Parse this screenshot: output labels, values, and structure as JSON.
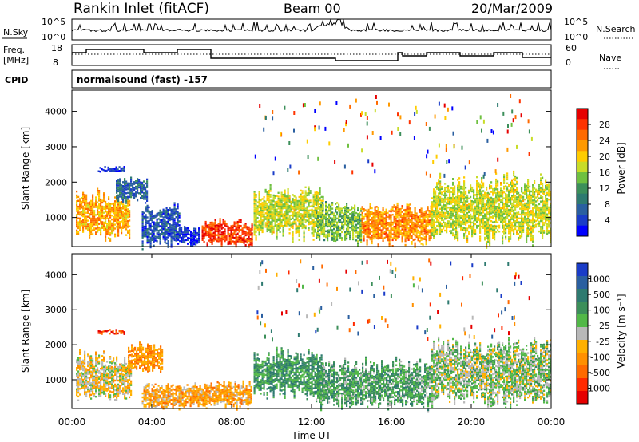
{
  "header": {
    "station": "Rankin Inlet (fitACF)",
    "beam": "Beam 00",
    "date": "20/Mar/2009"
  },
  "strip_nsky": {
    "left_label": "N.Sky",
    "right_label": "N.Search",
    "ticks_left": [
      "10^5",
      "10^0"
    ],
    "ticks_right": [
      "10^5",
      "10^0"
    ]
  },
  "strip_freq": {
    "left_label_1": "Freq.",
    "left_label_2": "[MHz]",
    "right_label": "Nave",
    "ticks_left": [
      "18",
      "8"
    ],
    "ticks_right": [
      "60",
      "0"
    ]
  },
  "strip_cpid": {
    "label": "CPID",
    "value": "normalsound (fast) -157"
  },
  "chart_data": [
    {
      "type": "heatmap",
      "panel": "power",
      "ylabel": "Slant Range [km]",
      "xlabel": "",
      "ylim": [
        180,
        4600
      ],
      "yticks": [
        "1000",
        "2000",
        "3000",
        "4000"
      ],
      "colorbar_label": "Power [dB]",
      "colorbar_ticks": [
        "28",
        "24",
        "20",
        "16",
        "12",
        "8",
        "4"
      ],
      "colorbar_colors": [
        "#e60000",
        "#ff3300",
        "#ff6a00",
        "#ff9900",
        "#ffcc00",
        "#c8dc28",
        "#6fc040",
        "#3c8f5a",
        "#2e7a70",
        "#2a5fa0",
        "#1a3cc8",
        "#0000ff"
      ],
      "blobs": [
        {
          "t0": 0.2,
          "t1": 2.9,
          "r0": 400,
          "r1": 1650,
          "v": 0.7
        },
        {
          "t0": 1.3,
          "t1": 2.6,
          "r0": 2280,
          "r1": 2400,
          "v": 0.05
        },
        {
          "t0": 2.2,
          "t1": 3.8,
          "r0": 1450,
          "r1": 2100,
          "v": 0.2
        },
        {
          "t0": 3.5,
          "t1": 5.4,
          "r0": 200,
          "r1": 1300,
          "v": 0.15
        },
        {
          "t0": 5.2,
          "t1": 6.4,
          "r0": 200,
          "r1": 700,
          "v": 0.05
        },
        {
          "t0": 6.5,
          "t1": 9.0,
          "r0": 200,
          "r1": 900,
          "v": 0.9
        },
        {
          "t0": 9.1,
          "t1": 12.6,
          "r0": 450,
          "r1": 1800,
          "v": 0.55
        },
        {
          "t0": 12.2,
          "t1": 14.5,
          "r0": 300,
          "r1": 1400,
          "v": 0.45
        },
        {
          "t0": 14.5,
          "t1": 18.0,
          "r0": 200,
          "r1": 1350,
          "v": 0.75
        },
        {
          "t0": 18.0,
          "t1": 24.0,
          "r0": 300,
          "r1": 2100,
          "v": 0.55
        }
      ]
    },
    {
      "type": "heatmap",
      "panel": "velocity",
      "ylabel": "Slant Range [km]",
      "xlabel": "Time UT",
      "ylim": [
        180,
        4600
      ],
      "yticks": [
        "1000",
        "2000",
        "3000",
        "4000"
      ],
      "xticks": [
        "00:00",
        "04:00",
        "08:00",
        "12:00",
        "16:00",
        "20:00",
        "00:00"
      ],
      "colorbar_label": "Velocity [m s⁻¹]",
      "colorbar_ticks": [
        "1000",
        "500",
        "100",
        "25",
        "-25",
        "-100",
        "-500",
        "-1000"
      ],
      "colorbar_colors": [
        "#1a3cc8",
        "#2a5fa0",
        "#2e7a70",
        "#3c8f5a",
        "#52b848",
        "#b8b8b8",
        "#ffb000",
        "#ff9000",
        "#ff6a00",
        "#ff2a00",
        "#e60000"
      ],
      "blobs": [
        {
          "t0": 0.2,
          "t1": 3.0,
          "r0": 400,
          "r1": 1700,
          "v": 0.45
        },
        {
          "t0": 1.3,
          "t1": 2.6,
          "r0": 2280,
          "r1": 2400,
          "v": 0.1
        },
        {
          "t0": 2.8,
          "t1": 4.5,
          "r0": 1200,
          "r1": 2000,
          "v": 0.3
        },
        {
          "t0": 3.5,
          "t1": 9.0,
          "r0": 200,
          "r1": 900,
          "v": 0.35
        },
        {
          "t0": 9.1,
          "t1": 12.6,
          "r0": 500,
          "r1": 1800,
          "v": 0.7
        },
        {
          "t0": 12.2,
          "t1": 18.0,
          "r0": 200,
          "r1": 1500,
          "v": 0.65
        },
        {
          "t0": 18.0,
          "t1": 24.0,
          "r0": 300,
          "r1": 2100,
          "v": 0.55
        }
      ]
    }
  ]
}
